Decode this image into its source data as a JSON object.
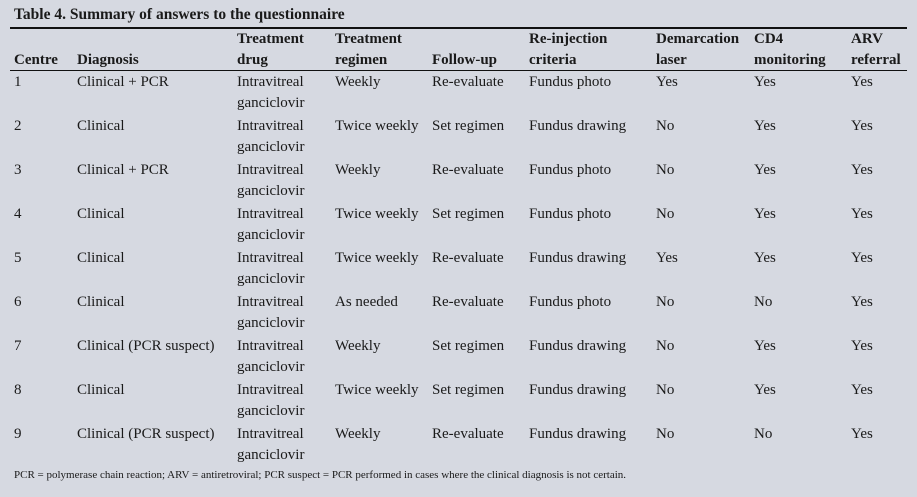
{
  "title": "Table 4. Summary of answers to the questionnaire",
  "headers": [
    [
      "Centre",
      ""
    ],
    [
      "Diagnosis",
      ""
    ],
    [
      "Treatment",
      "drug"
    ],
    [
      "Treatment",
      "regimen"
    ],
    [
      "Follow-up",
      ""
    ],
    [
      "Re-injection",
      "criteria"
    ],
    [
      "Demarcation",
      "laser"
    ],
    [
      "CD4",
      "monitoring"
    ],
    [
      "ARV",
      "referral"
    ]
  ],
  "rows": [
    [
      "1",
      "Clinical + PCR",
      "Intravitreal ganciclovir",
      "Weekly",
      "Re-evaluate",
      "Fundus photo",
      "Yes",
      "Yes",
      "Yes"
    ],
    [
      "2",
      "Clinical",
      "Intravitreal ganciclovir",
      "Twice weekly",
      "Set regimen",
      "Fundus drawing",
      "No",
      "Yes",
      "Yes"
    ],
    [
      "3",
      "Clinical + PCR",
      "Intravitreal ganciclovir",
      "Weekly",
      "Re-evaluate",
      "Fundus photo",
      "No",
      "Yes",
      "Yes"
    ],
    [
      "4",
      "Clinical",
      "Intravitreal ganciclovir",
      "Twice weekly",
      "Set regimen",
      "Fundus photo",
      "No",
      "Yes",
      "Yes"
    ],
    [
      "5",
      "Clinical",
      "Intravitreal ganciclovir",
      "Twice weekly",
      "Re-evaluate",
      "Fundus drawing",
      "Yes",
      "Yes",
      "Yes"
    ],
    [
      "6",
      "Clinical",
      "Intravitreal ganciclovir",
      "As needed",
      "Re-evaluate",
      "Fundus photo",
      "No",
      "No",
      "Yes"
    ],
    [
      "7",
      "Clinical (PCR suspect)",
      "Intravitreal ganciclovir",
      "Weekly",
      "Set regimen",
      "Fundus drawing",
      "No",
      "Yes",
      "Yes"
    ],
    [
      "8",
      "Clinical",
      "Intravitreal ganciclovir",
      "Twice weekly",
      "Set regimen",
      "Fundus drawing",
      "No",
      "Yes",
      "Yes"
    ],
    [
      "9",
      "Clinical (PCR suspect)",
      "Intravitreal ganciclovir",
      "Weekly",
      "Re-evaluate",
      "Fundus drawing",
      "No",
      "No",
      "Yes"
    ]
  ],
  "footnote": "PCR = polymerase chain reaction; ARV = antiretroviral; PCR suspect = PCR performed in cases where the clinical diagnosis is not certain."
}
